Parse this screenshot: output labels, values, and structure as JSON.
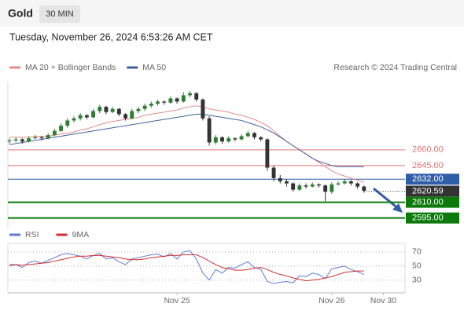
{
  "chart_data": {
    "type": "candlestick",
    "title": "Gold",
    "timeframe": "30 MIN",
    "subtitle": "Tuesday, November 26, 2024 6:53:26 AM CET",
    "credit": "Research © 2024 Trading Central",
    "ylim": [
      2588,
      2728
    ],
    "xlim": [
      0,
      61
    ],
    "xticks": [
      {
        "value": 26,
        "label": "Nov 25"
      },
      {
        "value": 50,
        "label": "Nov 26"
      },
      {
        "value": 58,
        "label": "Nov 30"
      }
    ],
    "up_color": "#2e7d32",
    "down_color": "#333333",
    "ohlc": [
      [
        2668,
        2671,
        2666,
        2669
      ],
      [
        2669,
        2672,
        2667,
        2670
      ],
      [
        2670,
        2671,
        2666,
        2668
      ],
      [
        2668,
        2673,
        2667,
        2671
      ],
      [
        2671,
        2674,
        2670,
        2672
      ],
      [
        2672,
        2673,
        2669,
        2671
      ],
      [
        2671,
        2676,
        2670,
        2674
      ],
      [
        2674,
        2680,
        2673,
        2678
      ],
      [
        2678,
        2685,
        2677,
        2683
      ],
      [
        2683,
        2690,
        2681,
        2688
      ],
      [
        2688,
        2692,
        2686,
        2690
      ],
      [
        2690,
        2695,
        2688,
        2693
      ],
      [
        2693,
        2694,
        2689,
        2691
      ],
      [
        2691,
        2699,
        2690,
        2697
      ],
      [
        2697,
        2703,
        2695,
        2701
      ],
      [
        2701,
        2702,
        2694,
        2696
      ],
      [
        2696,
        2701,
        2695,
        2699
      ],
      [
        2699,
        2700,
        2692,
        2694
      ],
      [
        2694,
        2695,
        2688,
        2690
      ],
      [
        2690,
        2699,
        2689,
        2697
      ],
      [
        2697,
        2701,
        2695,
        2699
      ],
      [
        2699,
        2704,
        2697,
        2702
      ],
      [
        2702,
        2706,
        2700,
        2704
      ],
      [
        2704,
        2708,
        2702,
        2706
      ],
      [
        2706,
        2707,
        2703,
        2705
      ],
      [
        2705,
        2711,
        2704,
        2709
      ],
      [
        2709,
        2710,
        2704,
        2706
      ],
      [
        2706,
        2715,
        2705,
        2712
      ],
      [
        2712,
        2716,
        2710,
        2714
      ],
      [
        2714,
        2715,
        2706,
        2708
      ],
      [
        2708,
        2709,
        2688,
        2690
      ],
      [
        2690,
        2692,
        2664,
        2667
      ],
      [
        2667,
        2674,
        2665,
        2672
      ],
      [
        2672,
        2673,
        2666,
        2668
      ],
      [
        2668,
        2673,
        2667,
        2671
      ],
      [
        2671,
        2672,
        2668,
        2670
      ],
      [
        2670,
        2675,
        2669,
        2673
      ],
      [
        2673,
        2678,
        2672,
        2676
      ],
      [
        2676,
        2677,
        2670,
        2672
      ],
      [
        2672,
        2673,
        2668,
        2670
      ],
      [
        2670,
        2671,
        2640,
        2643
      ],
      [
        2643,
        2645,
        2630,
        2633
      ],
      [
        2633,
        2636,
        2628,
        2630
      ],
      [
        2630,
        2632,
        2625,
        2628
      ],
      [
        2628,
        2629,
        2620,
        2622
      ],
      [
        2622,
        2628,
        2621,
        2626
      ],
      [
        2626,
        2628,
        2623,
        2625
      ],
      [
        2625,
        2629,
        2624,
        2627
      ],
      [
        2627,
        2628,
        2624,
        2626
      ],
      [
        2626,
        2627,
        2611,
        2620
      ],
      [
        2620,
        2629,
        2618,
        2627
      ],
      [
        2627,
        2630,
        2626,
        2628
      ],
      [
        2628,
        2632,
        2627,
        2630
      ],
      [
        2630,
        2631,
        2626,
        2628
      ],
      [
        2628,
        2629,
        2623,
        2625
      ],
      [
        2625,
        2626,
        2619,
        2621
      ]
    ],
    "series": [
      {
        "name": "MA 20 + Bollinger Bands",
        "color": "#e88a8a",
        "values": [
          2672,
          2672,
          2672,
          2672,
          2673,
          2673,
          2673,
          2674,
          2675,
          2676,
          2677,
          2679,
          2680,
          2682,
          2684,
          2686,
          2687,
          2688,
          2689,
          2690,
          2691,
          2693,
          2694,
          2695,
          2696,
          2697,
          2698,
          2700,
          2701,
          2702,
          2701,
          2699,
          2698,
          2697,
          2696,
          2694,
          2693,
          2691,
          2689,
          2686,
          2683,
          2678,
          2673,
          2668,
          2664,
          2660,
          2656,
          2652,
          2648,
          2644,
          2640,
          2637,
          2635,
          2633,
          2631,
          2629
        ]
      },
      {
        "name": "MA 50",
        "color": "#3f5f9f",
        "values": [
          2665,
          2666,
          2667,
          2668,
          2669,
          2670,
          2671,
          2672,
          2673,
          2674,
          2675,
          2676,
          2677,
          2678,
          2679,
          2680,
          2681,
          2682,
          2683,
          2684,
          2685,
          2686,
          2687,
          2688,
          2689,
          2690,
          2691,
          2692,
          2693,
          2694,
          2694,
          2693,
          2692,
          2691,
          2690,
          2689,
          2688,
          2686,
          2684,
          2682,
          2679,
          2676,
          2672,
          2668,
          2664,
          2660,
          2656,
          2652,
          2649,
          2647,
          2645,
          2644,
          2644,
          2644,
          2644,
          2644
        ]
      }
    ],
    "levels": [
      {
        "value": 2660,
        "label": "2660.00",
        "color": "#e57373",
        "style": "plain"
      },
      {
        "value": 2645,
        "label": "2645.00",
        "color": "#e57373",
        "style": "plain"
      },
      {
        "value": 2632,
        "label": "2632.00",
        "color": "#2f5ea8",
        "style": "box"
      },
      {
        "value": 2620.59,
        "label": "2620.59",
        "color": "#333333",
        "style": "current"
      },
      {
        "value": 2610,
        "label": "2610.00",
        "color": "#0b7a0b",
        "style": "box"
      },
      {
        "value": 2595,
        "label": "2595.00",
        "color": "#0b7a0b",
        "style": "box"
      }
    ],
    "rsi": {
      "ylim": [
        14,
        80
      ],
      "yticks": [
        30,
        50,
        70
      ],
      "series": [
        {
          "name": "RSI",
          "color": "#5b7bd5",
          "values": [
            50,
            52,
            48,
            55,
            57,
            54,
            58,
            62,
            66,
            68,
            66,
            64,
            60,
            65,
            68,
            60,
            62,
            56,
            52,
            60,
            62,
            64,
            66,
            67,
            63,
            68,
            60,
            70,
            72,
            60,
            40,
            30,
            45,
            40,
            48,
            47,
            52,
            56,
            48,
            45,
            28,
            25,
            27,
            28,
            26,
            36,
            35,
            40,
            38,
            32,
            46,
            48,
            50,
            45,
            42,
            38
          ]
        },
        {
          "name": "9MA",
          "color": "#d32f2f",
          "values": [
            52,
            52,
            51,
            52,
            53,
            54,
            55,
            57,
            59,
            61,
            63,
            64,
            64,
            65,
            65,
            64,
            63,
            62,
            60,
            59,
            59,
            60,
            62,
            63,
            64,
            65,
            65,
            66,
            66,
            66,
            62,
            57,
            52,
            48,
            46,
            44,
            44,
            45,
            47,
            48,
            45,
            41,
            38,
            36,
            33,
            31,
            29,
            30,
            31,
            33,
            35,
            38,
            41,
            42,
            43,
            43
          ]
        }
      ]
    }
  }
}
